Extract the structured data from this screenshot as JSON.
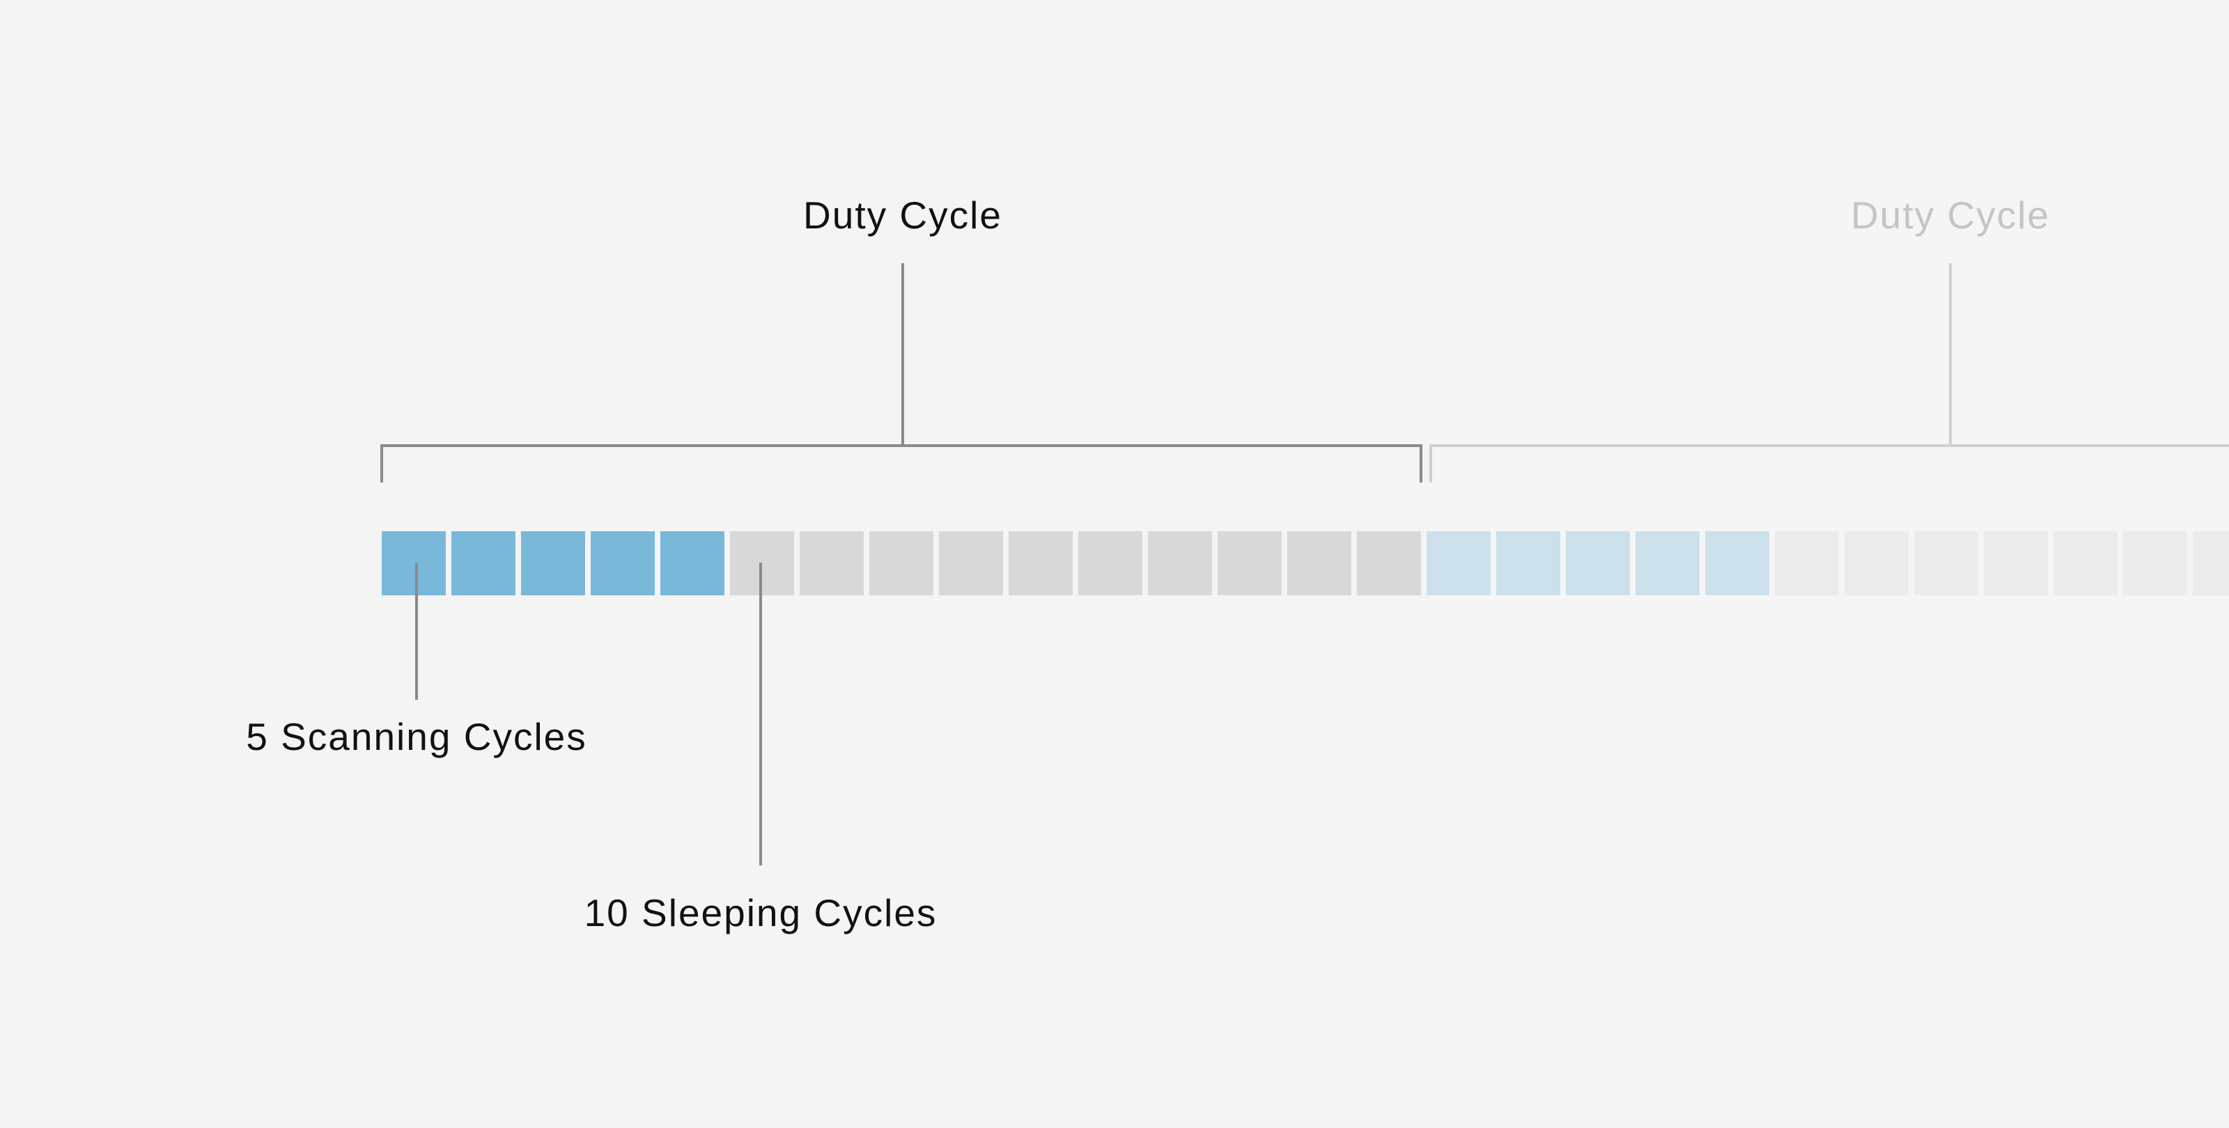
{
  "duty_cycle": {
    "label": "Duty Cycle",
    "scanning_count": 5,
    "sleeping_count": 10
  },
  "repeat_duty_cycle": {
    "label": "Duty Cycle"
  },
  "annotations": {
    "scanning": "5 Scanning Cycles",
    "sleeping": "10 Sleeping Cycles"
  },
  "colors": {
    "scanning": "#7ab8d9",
    "sleeping": "#d8d8d8",
    "scanning_faded": "#cce0eb",
    "sleeping_faded": "#ebebeb",
    "bracket": "#8a8a8a",
    "bracket_faded": "#cfcfcf",
    "label": "#111111",
    "label_faded": "#c4c4c4",
    "background": "#f4f4f4"
  }
}
